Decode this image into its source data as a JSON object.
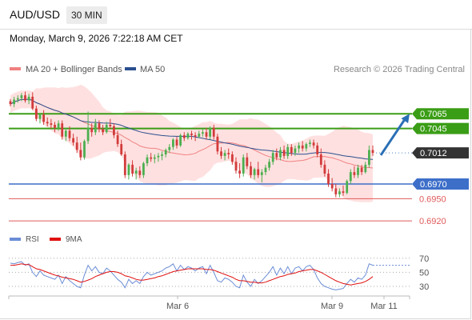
{
  "header": {
    "pair": "AUD/USD",
    "timeframe": "30 MIN",
    "datetime": "Monday, March 9, 2026 7:22:18 AM CET"
  },
  "legend": {
    "ma20": "MA 20 + Bollinger Bands",
    "ma50": "MA 50",
    "ma20_color": "#f08080",
    "ma50_color": "#2a4f8f"
  },
  "credit": "Research © 2026 Trading Central",
  "colors": {
    "bull": "#4caf50",
    "bear": "#d23b3b",
    "band_fill": "#ffd6d6",
    "resistance": "#3a9d16",
    "support": "#3d6fc9",
    "target": "#e05a5a",
    "arrow": "#2a6fb5",
    "rsi": "#6b8dd6",
    "rsi_ma": "#e01010"
  },
  "chart_data": [
    {
      "type": "candlestick",
      "x_labels": [
        "Mar 6",
        "Mar 9",
        "Mar 11"
      ],
      "ylim": [
        0.6905,
        0.7115
      ],
      "levels": [
        {
          "value": 0.7065,
          "label": "0.7065",
          "kind": "resistance"
        },
        {
          "value": 0.7045,
          "label": "0.7045",
          "kind": "resistance"
        },
        {
          "value": 0.7012,
          "label": "0.7012",
          "kind": "current"
        },
        {
          "value": 0.697,
          "label": "0.6970",
          "kind": "support"
        },
        {
          "value": 0.695,
          "label": "0.6950",
          "kind": "target"
        },
        {
          "value": 0.692,
          "label": "0.6920",
          "kind": "target"
        }
      ],
      "arrow": {
        "from": 0.7009,
        "to": 0.7065
      },
      "candles": [
        [
          0.7082,
          0.7085,
          0.7075,
          0.7078
        ],
        [
          0.7078,
          0.7088,
          0.7074,
          0.7084
        ],
        [
          0.7084,
          0.709,
          0.708,
          0.7086
        ],
        [
          0.7086,
          0.7093,
          0.7082,
          0.709
        ],
        [
          0.709,
          0.7095,
          0.708,
          0.7083
        ],
        [
          0.7083,
          0.7092,
          0.7078,
          0.7088
        ],
        [
          0.7088,
          0.7094,
          0.707,
          0.7072
        ],
        [
          0.7072,
          0.7076,
          0.7055,
          0.7058
        ],
        [
          0.7058,
          0.7066,
          0.7052,
          0.7064
        ],
        [
          0.7064,
          0.707,
          0.705,
          0.7054
        ],
        [
          0.7054,
          0.706,
          0.7048,
          0.7052
        ],
        [
          0.7052,
          0.7058,
          0.7045,
          0.705
        ],
        [
          0.705,
          0.7054,
          0.704,
          0.7046
        ],
        [
          0.7046,
          0.7056,
          0.7042,
          0.7052
        ],
        [
          0.7052,
          0.7056,
          0.703,
          0.7034
        ],
        [
          0.7034,
          0.7046,
          0.7028,
          0.7042
        ],
        [
          0.7042,
          0.7048,
          0.7028,
          0.7032
        ],
        [
          0.7032,
          0.7038,
          0.7022,
          0.7026
        ],
        [
          0.7026,
          0.7034,
          0.7012,
          0.7016
        ],
        [
          0.7016,
          0.7026,
          0.7002,
          0.7006
        ],
        [
          0.7006,
          0.703,
          0.7003,
          0.7028
        ],
        [
          0.7028,
          0.7068,
          0.7024,
          0.7046
        ],
        [
          0.7046,
          0.7052,
          0.7034,
          0.704
        ],
        [
          0.704,
          0.7058,
          0.7036,
          0.7052
        ],
        [
          0.7052,
          0.7056,
          0.704,
          0.7044
        ],
        [
          0.7044,
          0.705,
          0.7036,
          0.704
        ],
        [
          0.704,
          0.7054,
          0.7038,
          0.705
        ],
        [
          0.705,
          0.7058,
          0.7044,
          0.7048
        ],
        [
          0.7048,
          0.7052,
          0.7032,
          0.7036
        ],
        [
          0.7036,
          0.7042,
          0.702,
          0.7024
        ],
        [
          0.7024,
          0.703,
          0.7008,
          0.701
        ],
        [
          0.701,
          0.7014,
          0.6978,
          0.6982
        ],
        [
          0.6982,
          0.6998,
          0.6976,
          0.6996
        ],
        [
          0.6996,
          0.7002,
          0.698,
          0.6984
        ],
        [
          0.6984,
          0.6992,
          0.6976,
          0.6988
        ],
        [
          0.6988,
          0.6994,
          0.6978,
          0.6982
        ],
        [
          0.6982,
          0.7,
          0.6978,
          0.6998
        ],
        [
          0.6998,
          0.701,
          0.6994,
          0.7006
        ],
        [
          0.7006,
          0.7012,
          0.7,
          0.7004
        ],
        [
          0.7004,
          0.701,
          0.6998,
          0.7006
        ],
        [
          0.7006,
          0.7012,
          0.7,
          0.7008
        ],
        [
          0.7008,
          0.7014,
          0.7002,
          0.701
        ],
        [
          0.701,
          0.7018,
          0.7006,
          0.7016
        ],
        [
          0.7016,
          0.7024,
          0.7012,
          0.702
        ],
        [
          0.702,
          0.7032,
          0.7016,
          0.703
        ],
        [
          0.703,
          0.7034,
          0.7018,
          0.7022
        ],
        [
          0.7022,
          0.7038,
          0.702,
          0.7036
        ],
        [
          0.7036,
          0.704,
          0.7028,
          0.7032
        ],
        [
          0.7032,
          0.704,
          0.703,
          0.7038
        ],
        [
          0.7038,
          0.7042,
          0.703,
          0.7036
        ],
        [
          0.7036,
          0.704,
          0.7028,
          0.7034
        ],
        [
          0.7034,
          0.7042,
          0.7032,
          0.7038
        ],
        [
          0.7038,
          0.7044,
          0.7034,
          0.704
        ],
        [
          0.704,
          0.7046,
          0.703,
          0.7034
        ],
        [
          0.7034,
          0.7048,
          0.703,
          0.7046
        ],
        [
          0.7046,
          0.705,
          0.703,
          0.7034
        ],
        [
          0.7034,
          0.7038,
          0.701,
          0.7014
        ],
        [
          0.7014,
          0.702,
          0.7004,
          0.7008
        ],
        [
          0.7008,
          0.7016,
          0.7002,
          0.7012
        ],
        [
          0.7012,
          0.7018,
          0.7004,
          0.701
        ],
        [
          0.701,
          0.7014,
          0.6996,
          0.7
        ],
        [
          0.7,
          0.7006,
          0.6984,
          0.6988
        ],
        [
          0.6988,
          0.6998,
          0.6978,
          0.6984
        ],
        [
          0.6984,
          0.701,
          0.698,
          0.7006
        ],
        [
          0.7006,
          0.7012,
          0.699,
          0.6994
        ],
        [
          0.6994,
          0.7,
          0.6978,
          0.6982
        ],
        [
          0.6982,
          0.6992,
          0.6976,
          0.699
        ],
        [
          0.699,
          0.7,
          0.6978,
          0.6982
        ],
        [
          0.6982,
          0.699,
          0.6972,
          0.6986
        ],
        [
          0.6986,
          0.6996,
          0.6982,
          0.6992
        ],
        [
          0.6992,
          0.7004,
          0.6988,
          0.7
        ],
        [
          0.7,
          0.7016,
          0.6996,
          0.7012
        ],
        [
          0.7012,
          0.7018,
          0.7002,
          0.7006
        ],
        [
          0.7006,
          0.702,
          0.7002,
          0.7016
        ],
        [
          0.7016,
          0.7022,
          0.7004,
          0.7008
        ],
        [
          0.7008,
          0.7024,
          0.7004,
          0.702
        ],
        [
          0.702,
          0.7024,
          0.7008,
          0.7012
        ],
        [
          0.7012,
          0.7022,
          0.7008,
          0.7018
        ],
        [
          0.7018,
          0.7026,
          0.7012,
          0.7022
        ],
        [
          0.7022,
          0.7028,
          0.7014,
          0.7018
        ],
        [
          0.7018,
          0.7026,
          0.7014,
          0.7024
        ],
        [
          0.7024,
          0.703,
          0.702,
          0.7026
        ],
        [
          0.7026,
          0.703,
          0.7018,
          0.7022
        ],
        [
          0.7022,
          0.7026,
          0.7006,
          0.701
        ],
        [
          0.701,
          0.7018,
          0.6992,
          0.6996
        ],
        [
          0.6996,
          0.7002,
          0.698,
          0.6984
        ],
        [
          0.6984,
          0.699,
          0.6966,
          0.697
        ],
        [
          0.697,
          0.6978,
          0.696,
          0.6964
        ],
        [
          0.6964,
          0.697,
          0.6952,
          0.6956
        ],
        [
          0.6956,
          0.6964,
          0.6952,
          0.696
        ],
        [
          0.696,
          0.6968,
          0.6954,
          0.6958
        ],
        [
          0.6958,
          0.6976,
          0.6956,
          0.6974
        ],
        [
          0.6974,
          0.699,
          0.697,
          0.6986
        ],
        [
          0.6986,
          0.6994,
          0.6978,
          0.6982
        ],
        [
          0.6982,
          0.6996,
          0.6978,
          0.6992
        ],
        [
          0.6992,
          0.6996,
          0.6982,
          0.6986
        ],
        [
          0.6986,
          0.7,
          0.6984,
          0.6996
        ],
        [
          0.6996,
          0.7022,
          0.6992,
          0.7016
        ],
        [
          0.7016,
          0.7022,
          0.7008,
          0.7012
        ]
      ]
    },
    {
      "type": "line",
      "series": [
        {
          "name": "RSI"
        },
        {
          "name": "9MA"
        }
      ],
      "ylim": [
        22,
        80
      ],
      "y_ticks": [
        70,
        50,
        30
      ],
      "rsi_values": [
        63,
        62,
        64,
        65,
        60,
        62,
        50,
        44,
        52,
        46,
        44,
        42,
        40,
        46,
        34,
        44,
        38,
        34,
        30,
        28,
        46,
        60,
        52,
        58,
        50,
        48,
        56,
        52,
        46,
        40,
        36,
        28,
        40,
        34,
        38,
        34,
        44,
        50,
        46,
        48,
        50,
        52,
        56,
        58,
        62,
        52,
        60,
        54,
        58,
        56,
        52,
        56,
        58,
        48,
        60,
        50,
        38,
        36,
        42,
        40,
        36,
        30,
        28,
        46,
        36,
        30,
        40,
        34,
        38,
        44,
        50,
        58,
        46,
        56,
        48,
        58,
        48,
        56,
        58,
        52,
        58,
        60,
        54,
        42,
        34,
        30,
        28,
        26,
        25,
        26,
        27,
        34,
        40,
        36,
        42,
        40,
        46,
        62,
        60
      ],
      "ma_values": [
        60,
        60,
        61,
        62,
        61,
        61,
        58,
        55,
        54,
        52,
        50,
        48,
        46,
        45,
        43,
        42,
        41,
        40,
        38,
        36,
        37,
        39,
        41,
        44,
        46,
        48,
        50,
        51,
        51,
        50,
        48,
        45,
        44,
        42,
        40,
        39,
        39,
        40,
        41,
        42,
        44,
        45,
        47,
        49,
        51,
        52,
        53,
        54,
        55,
        55,
        55,
        55,
        55,
        54,
        54,
        53,
        51,
        49,
        47,
        45,
        43,
        40,
        38,
        38,
        37,
        36,
        36,
        35,
        35,
        36,
        38,
        40,
        42,
        44,
        45,
        47,
        48,
        49,
        51,
        52,
        53,
        54,
        54,
        52,
        50,
        47,
        44,
        41,
        38,
        36,
        34,
        33,
        32,
        33,
        34,
        35,
        37,
        40,
        44
      ]
    }
  ]
}
